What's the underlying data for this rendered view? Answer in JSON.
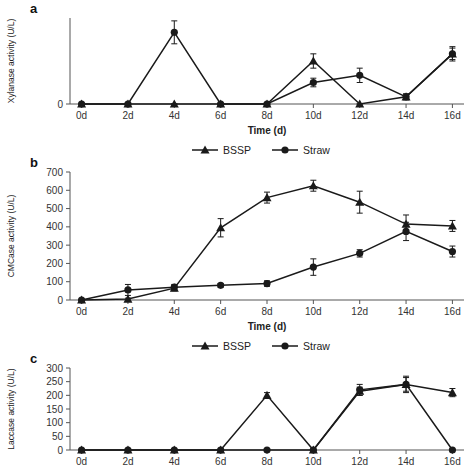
{
  "chart_data": [
    {
      "type": "line",
      "title": "a",
      "xlabel": "Time (d)",
      "ylabel": "Xylanase activity (U/L)",
      "x": [
        0,
        2,
        4,
        6,
        8,
        10,
        12,
        14,
        16
      ],
      "xlim": [
        -0.5,
        16.5
      ],
      "xticks": [
        {
          "value": 0,
          "label": "0d"
        },
        {
          "value": 2,
          "label": "2d"
        },
        {
          "value": 4,
          "label": "4d"
        },
        {
          "value": 6,
          "label": "6d"
        },
        {
          "value": 8,
          "label": "8d"
        },
        {
          "value": 10,
          "label": "10d"
        },
        {
          "value": 12,
          "label": "12d"
        },
        {
          "value": 14,
          "label": "14d"
        },
        {
          "value": 16,
          "label": "16d"
        }
      ],
      "ylim": [
        0,
        60
      ],
      "yticks": [
        0
      ],
      "grid": false,
      "legend": "bottom",
      "series": [
        {
          "name": "BSSP",
          "color": "#1a1a1a",
          "marker": "triangle",
          "line_style": "solid",
          "values": [
            0,
            0,
            0,
            0,
            0,
            30,
            0,
            5,
            35
          ],
          "errors": [
            0,
            0,
            0,
            0,
            0,
            5,
            0,
            2,
            5
          ]
        },
        {
          "name": "Straw",
          "color": "#1a1a1a",
          "marker": "circle",
          "line_style": "solid",
          "values": [
            0,
            0,
            50,
            0,
            0,
            15,
            20,
            5,
            35
          ],
          "errors": [
            0,
            0,
            8,
            0,
            0,
            3,
            5,
            2,
            4
          ]
        }
      ]
    },
    {
      "type": "line",
      "title": "b",
      "xlabel": "Time (d)",
      "ylabel": "CMCase activity (U/L)",
      "x": [
        0,
        2,
        4,
        6,
        8,
        10,
        12,
        14,
        16
      ],
      "xlim": [
        -0.5,
        16.5
      ],
      "xticks": [
        {
          "value": 0,
          "label": "0d"
        },
        {
          "value": 2,
          "label": "2d"
        },
        {
          "value": 4,
          "label": "4d"
        },
        {
          "value": 6,
          "label": "6d"
        },
        {
          "value": 8,
          "label": "8d"
        },
        {
          "value": 10,
          "label": "10d"
        },
        {
          "value": 12,
          "label": "12d"
        },
        {
          "value": 14,
          "label": "14d"
        },
        {
          "value": 16,
          "label": "16d"
        }
      ],
      "ylim": [
        0,
        700
      ],
      "yticks": [
        0,
        100,
        200,
        300,
        400,
        500,
        600,
        700
      ],
      "grid": false,
      "legend": "bottom",
      "series": [
        {
          "name": "BSSP",
          "color": "#1a1a1a",
          "marker": "triangle",
          "line_style": "solid",
          "values": [
            0,
            5,
            65,
            395,
            560,
            625,
            535,
            415,
            405
          ],
          "errors": [
            0,
            5,
            15,
            50,
            30,
            30,
            60,
            50,
            30
          ]
        },
        {
          "name": "Straw",
          "color": "#1a1a1a",
          "marker": "circle",
          "line_style": "solid",
          "values": [
            0,
            55,
            70,
            80,
            90,
            180,
            255,
            375,
            265
          ],
          "errors": [
            0,
            30,
            15,
            10,
            15,
            45,
            20,
            50,
            30
          ]
        }
      ]
    },
    {
      "type": "line",
      "title": "c",
      "ylabel": "Laccase activity (U/L)",
      "x": [
        0,
        2,
        4,
        6,
        8,
        10,
        12,
        14,
        16
      ],
      "xlim": [
        -0.5,
        16.5
      ],
      "xticks": [
        {
          "value": 0,
          "label": "0d"
        },
        {
          "value": 2,
          "label": "2d"
        },
        {
          "value": 4,
          "label": "4d"
        },
        {
          "value": 6,
          "label": "6d"
        },
        {
          "value": 8,
          "label": "8d"
        },
        {
          "value": 10,
          "label": "10d"
        },
        {
          "value": 12,
          "label": "12d"
        },
        {
          "value": 14,
          "label": "14d"
        },
        {
          "value": 16,
          "label": "16d"
        }
      ],
      "ylim": [
        0,
        300
      ],
      "yticks": [
        0,
        50,
        100,
        150,
        200,
        250,
        300
      ],
      "grid": false,
      "series": [
        {
          "color": "#1a1a1a",
          "marker": "triangle",
          "line_style": "solid",
          "values": [
            0,
            0,
            0,
            0,
            200,
            0,
            215,
            240,
            210
          ],
          "errors": [
            0,
            0,
            0,
            0,
            10,
            0,
            15,
            25,
            15
          ]
        },
        {
          "color": "#1a1a1a",
          "marker": "circle",
          "line_style": "solid",
          "values": [
            0,
            0,
            0,
            0,
            0,
            0,
            220,
            240,
            0
          ],
          "errors": [
            0,
            0,
            0,
            0,
            0,
            0,
            20,
            30,
            0
          ]
        }
      ]
    }
  ]
}
